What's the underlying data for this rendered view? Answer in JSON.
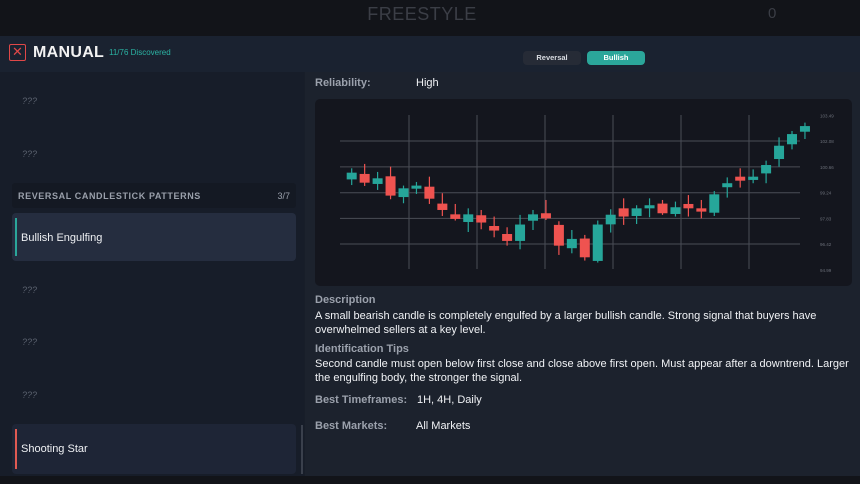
{
  "topbar": {
    "title": "FREESTYLE",
    "score": "0"
  },
  "header": {
    "close_icon": "x-icon",
    "title": "MANUAL",
    "discovered": "11/76 Discovered"
  },
  "tabs": [
    {
      "label": "Reversal",
      "active": false
    },
    {
      "label": "Bullish",
      "active": true
    }
  ],
  "sidebar": {
    "locked_top": [
      "???",
      "???"
    ],
    "section": {
      "title": "REVERSAL CANDLESTICK PATTERNS",
      "count": "3/7"
    },
    "items": [
      {
        "label": "Bullish Engulfing",
        "accent": "#2ba69a",
        "selected": true
      },
      {
        "label": "???"
      },
      {
        "label": "???"
      },
      {
        "label": "???"
      },
      {
        "label": "Shooting Star",
        "accent": "#e05a52"
      }
    ]
  },
  "detail": {
    "reliability_label": "Reliability:",
    "reliability": "High",
    "description_label": "Description",
    "description": "A small bearish candle is completely engulfed by a larger bullish candle. Strong signal that buyers have overwhelmed sellers at a key level.",
    "tips_label": "Identification Tips",
    "tips": "Second candle must open below first close and close above first open. Must appear after a downtrend. Larger the engulfing body, the stronger the signal.",
    "timeframes_label": "Best Timeframes:",
    "timeframes": "1H, 4H, Daily",
    "markets_label": "Best Markets:",
    "markets": "All Markets"
  },
  "chart_data": {
    "type": "candlestick",
    "colors": {
      "up": "#26a69a",
      "down": "#ef5350"
    },
    "y_ticks": [
      "103.49",
      "102.08",
      "100.66",
      "99.24",
      "97.83",
      "96.42",
      "94.99"
    ],
    "ylim": [
      94.99,
      103.49
    ],
    "grid": true,
    "candles": [
      [
        99.97,
        100.58,
        99.66,
        100.34
      ],
      [
        100.27,
        100.82,
        99.61,
        99.79
      ],
      [
        99.72,
        100.38,
        99.39,
        100.03
      ],
      [
        100.14,
        100.67,
        98.88,
        99.08
      ],
      [
        99.0,
        99.63,
        98.66,
        99.48
      ],
      [
        99.46,
        99.83,
        99.17,
        99.63
      ],
      [
        99.57,
        100.12,
        98.62,
        98.91
      ],
      [
        98.64,
        99.21,
        97.96,
        98.29
      ],
      [
        98.05,
        98.62,
        97.71,
        97.8
      ],
      [
        97.63,
        98.38,
        97.08,
        98.05
      ],
      [
        98.0,
        98.29,
        97.23,
        97.6
      ],
      [
        97.41,
        97.93,
        96.79,
        97.16
      ],
      [
        96.97,
        97.34,
        96.33,
        96.59
      ],
      [
        96.59,
        98.02,
        96.13,
        97.49
      ],
      [
        97.7,
        98.29,
        97.19,
        98.05
      ],
      [
        98.11,
        98.84,
        97.74,
        97.83
      ],
      [
        97.47,
        97.67,
        95.82,
        96.33
      ],
      [
        96.19,
        97.19,
        95.91,
        96.7
      ],
      [
        96.72,
        96.92,
        95.51,
        95.69
      ],
      [
        95.49,
        97.71,
        95.4,
        97.49
      ],
      [
        97.5,
        98.33,
        97.05,
        98.03
      ],
      [
        98.38,
        98.93,
        97.47,
        97.93
      ],
      [
        97.96,
        98.55,
        97.52,
        98.38
      ],
      [
        98.38,
        98.93,
        97.89,
        98.55
      ],
      [
        98.64,
        98.84,
        98.02,
        98.11
      ],
      [
        98.07,
        98.75,
        97.93,
        98.44
      ],
      [
        98.62,
        99.11,
        97.93,
        98.38
      ],
      [
        98.38,
        98.84,
        97.83,
        98.2
      ],
      [
        98.14,
        99.33,
        97.96,
        99.15
      ],
      [
        99.54,
        100.08,
        98.97,
        99.76
      ],
      [
        100.12,
        100.58,
        99.52,
        99.9
      ],
      [
        99.94,
        100.52,
        99.76,
        100.12
      ],
      [
        100.3,
        101.0,
        99.76,
        100.76
      ],
      [
        101.09,
        102.28,
        100.67,
        101.82
      ],
      [
        101.9,
        102.63,
        101.62,
        102.46
      ],
      [
        102.59,
        103.09,
        102.19,
        102.9
      ]
    ]
  }
}
